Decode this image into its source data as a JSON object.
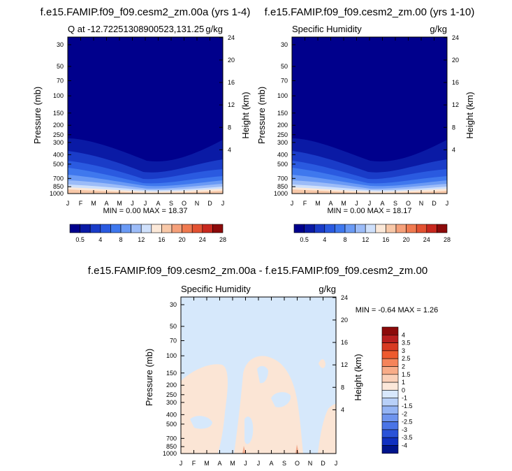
{
  "chart_data": [
    {
      "type": "heatmap",
      "title": "f.e15.FAMIP.f09_f09.cesm2_zm.00a (yrs 1-4)",
      "subtitle_left": "Q at -12.72251308900523,131.25",
      "subtitle_right": "g/kg",
      "xlabel": "",
      "ylabel": "Pressure (mb)",
      "ylabel_right": "Height (km)",
      "x_ticks": [
        "J",
        "F",
        "M",
        "A",
        "M",
        "J",
        "J",
        "A",
        "S",
        "O",
        "N",
        "D",
        "J"
      ],
      "y_ticks": [
        "30",
        "50",
        "70",
        "100",
        "150",
        "200",
        "250",
        "300",
        "400",
        "500",
        "700",
        "850",
        "1000"
      ],
      "height_ticks": [
        "24",
        "20",
        "16",
        "12",
        "8",
        "4"
      ],
      "stats": "MIN =   0.00 MAX =  18.37",
      "colorbar_labels": [
        "0.5",
        "4",
        "8",
        "12",
        "16",
        "20",
        "24",
        "28"
      ]
    },
    {
      "type": "heatmap",
      "title": "f.e15.FAMIP.f09_f09.cesm2_zm.00 (yrs 1-10)",
      "subtitle_left": "Specific Humidity",
      "subtitle_right": "g/kg",
      "xlabel": "",
      "ylabel": "Pressure (mb)",
      "ylabel_right": "Height (km)",
      "x_ticks": [
        "J",
        "F",
        "M",
        "A",
        "M",
        "J",
        "J",
        "A",
        "S",
        "O",
        "N",
        "D",
        "J"
      ],
      "y_ticks": [
        "30",
        "50",
        "70",
        "100",
        "150",
        "200",
        "250",
        "300",
        "400",
        "500",
        "700",
        "850",
        "1000"
      ],
      "height_ticks": [
        "24",
        "20",
        "16",
        "12",
        "8",
        "4"
      ],
      "stats": "MIN =   0.00 MAX =  18.17",
      "colorbar_labels": [
        "0.5",
        "4",
        "8",
        "12",
        "16",
        "20",
        "24",
        "28"
      ]
    },
    {
      "type": "heatmap",
      "title": "f.e15.FAMIP.f09_f09.cesm2_zm.00a - f.e15.FAMIP.f09_f09.cesm2_zm.00",
      "subtitle_left": "Specific Humidity",
      "subtitle_right": "g/kg",
      "xlabel": "",
      "ylabel": "Pressure (mb)",
      "ylabel_right": "Height (km)",
      "x_ticks": [
        "J",
        "F",
        "M",
        "A",
        "M",
        "J",
        "J",
        "A",
        "S",
        "O",
        "N",
        "D",
        "J"
      ],
      "y_ticks": [
        "30",
        "50",
        "70",
        "100",
        "150",
        "200",
        "250",
        "300",
        "400",
        "500",
        "700",
        "850",
        "1000"
      ],
      "height_ticks": [
        "24",
        "20",
        "16",
        "12",
        "8",
        "4"
      ],
      "stats": "MIN =  -0.64 MAX =   1.26",
      "colorbar_labels": [
        "4",
        "3.5",
        "3",
        "2.5",
        "2",
        "1.5",
        "1",
        "0",
        "-1",
        "-1.5",
        "-2",
        "-2.5",
        "-3",
        "-3.5",
        "-4"
      ]
    }
  ],
  "colors": {
    "abs_scale": [
      "#00008c",
      "#0a1aa5",
      "#1a3cc8",
      "#2a5ae0",
      "#3f78ee",
      "#6a9af5",
      "#9cbcf8",
      "#cfe0fb",
      "#fbe8d8",
      "#f8c8a8",
      "#f5a07a",
      "#f07a50",
      "#e35232",
      "#c8281e",
      "#8c0a0a"
    ],
    "diff_scale": [
      "#8c0a0a",
      "#b81e1e",
      "#d83a22",
      "#ee5a2e",
      "#f5845a",
      "#f8ac88",
      "#fad0b8",
      "#fce8da",
      "#d8e8fc",
      "#b8d0f8",
      "#94b4f4",
      "#6e94ee",
      "#4a74e6",
      "#2a52d8",
      "#1030c0",
      "#00148c"
    ],
    "diff_pos": "#fbe5d5",
    "diff_neg": "#d6e8fb",
    "diff_spot": "#f2a98c"
  }
}
